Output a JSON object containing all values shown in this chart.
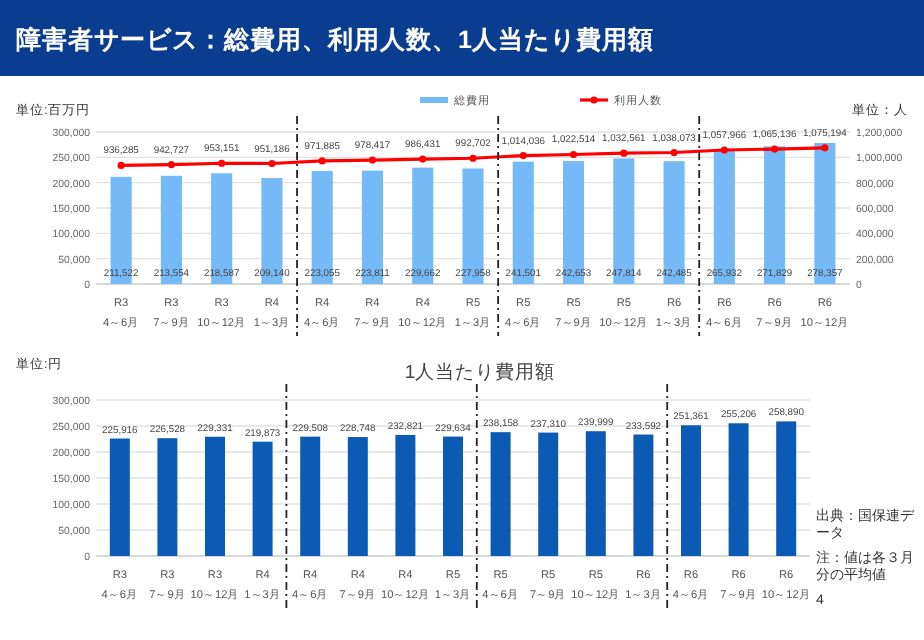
{
  "chart_data": [
    {
      "type": "bar",
      "title": "障害者サービス：総費用、利用人数、1人当たり費用額",
      "ylabel": "単位:百万円",
      "y2label": "単位：人",
      "categories": [
        "R3\n4～6月",
        "R3\n7～9月",
        "R3\n10～12月",
        "R4\n1～3月",
        "R4\n4～6月",
        "R4\n7～9月",
        "R4\n10～12月",
        "R5\n1～3月",
        "R5\n4～6月",
        "R5\n7～9月",
        "R5\n10～12月",
        "R6\n1～3月",
        "R6\n4～6月",
        "R6\n7～9月",
        "R6\n10～12月"
      ],
      "series": [
        {
          "name": "総費用",
          "type": "bar",
          "color": "#75b9f7",
          "values": [
            211522,
            213554,
            218587,
            209140,
            223055,
            223811,
            229662,
            227958,
            241501,
            242653,
            247814,
            242485,
            265932,
            271829,
            278357
          ],
          "value_labels": [
            "211,522",
            "213,554",
            "218,587",
            "209,140",
            "223,055",
            "223,811",
            "229,662",
            "227,958",
            "241,501",
            "242,653",
            "247,814",
            "242,485",
            "265,932",
            "271,829",
            "278,357"
          ]
        },
        {
          "name": "利用人数",
          "type": "line",
          "axis": "y2",
          "color": "#ff0000",
          "values": [
            936285,
            942727,
            953151,
            951186,
            971885,
            978417,
            986431,
            992702,
            1014036,
            1022514,
            1032561,
            1038073,
            1057966,
            1065136,
            1075194
          ],
          "value_labels": [
            "936,285",
            "942,727",
            "953,151",
            "951,186",
            "971,885",
            "978,417",
            "986,431",
            "992,702",
            "1,014,036",
            "1,022,514",
            "1,032,561",
            "1,038,073",
            "1,057,966",
            "1,065,136",
            "1,075,194"
          ]
        }
      ],
      "ylim": [
        0,
        300000
      ],
      "yticks": [
        {
          "value": 0,
          "label": "0"
        },
        {
          "value": 50000,
          "label": "50,000"
        },
        {
          "value": 100000,
          "label": "100,000"
        },
        {
          "value": 150000,
          "label": "150,000"
        },
        {
          "value": 200000,
          "label": "200,000"
        },
        {
          "value": 250000,
          "label": "250,000"
        },
        {
          "value": 300000,
          "label": "300,000"
        }
      ],
      "y2lim": [
        0,
        1200000
      ],
      "y2ticks": [
        {
          "value": 0,
          "label": "0"
        },
        {
          "value": 200000,
          "label": "200,000"
        },
        {
          "value": 400000,
          "label": "400,000"
        },
        {
          "value": 600000,
          "label": "600,000"
        },
        {
          "value": 800000,
          "label": "800,000"
        },
        {
          "value": 1000000,
          "label": "1,000,000"
        },
        {
          "value": 1200000,
          "label": "1,200,000"
        }
      ],
      "grid": "y",
      "legend": "top",
      "marker": "circle"
    },
    {
      "type": "bar",
      "title": "1人当たり費用額",
      "ylabel": "単位:円",
      "categories": [
        "R3\n4～6月",
        "R3\n7～9月",
        "R3\n10～12月",
        "R4\n1～3月",
        "R4\n4～6月",
        "R4\n7～9月",
        "R4\n10～12月",
        "R5\n1～3月",
        "R5\n4～6月",
        "R5\n7～9月",
        "R5\n10～12月",
        "R6\n1～3月",
        "R6\n4～6月",
        "R6\n7～9月",
        "R6\n10～12月"
      ],
      "values": [
        225916,
        226528,
        229331,
        219873,
        229508,
        228748,
        232821,
        229634,
        238158,
        237310,
        239999,
        233592,
        251361,
        255206,
        258890
      ],
      "value_labels": [
        "225,916",
        "226,528",
        "229,331",
        "219,873",
        "229,508",
        "228,748",
        "232,821",
        "229,634",
        "238,158",
        "237,310",
        "239,999",
        "233,592",
        "251,361",
        "255,206",
        "258,890"
      ],
      "color": "#0b5bb5",
      "ylim": [
        0,
        300000
      ],
      "yticks": [
        {
          "value": 0,
          "label": "0"
        },
        {
          "value": 50000,
          "label": "50,000"
        },
        {
          "value": 100000,
          "label": "100,000"
        },
        {
          "value": 150000,
          "label": "150,000"
        },
        {
          "value": 200000,
          "label": "200,000"
        },
        {
          "value": 250000,
          "label": "250,000"
        },
        {
          "value": 300000,
          "label": "300,000"
        }
      ],
      "grid": "y",
      "annotations": [
        "出典：国保連データ",
        "注：値は各３月分の平均値",
        "4"
      ]
    }
  ]
}
